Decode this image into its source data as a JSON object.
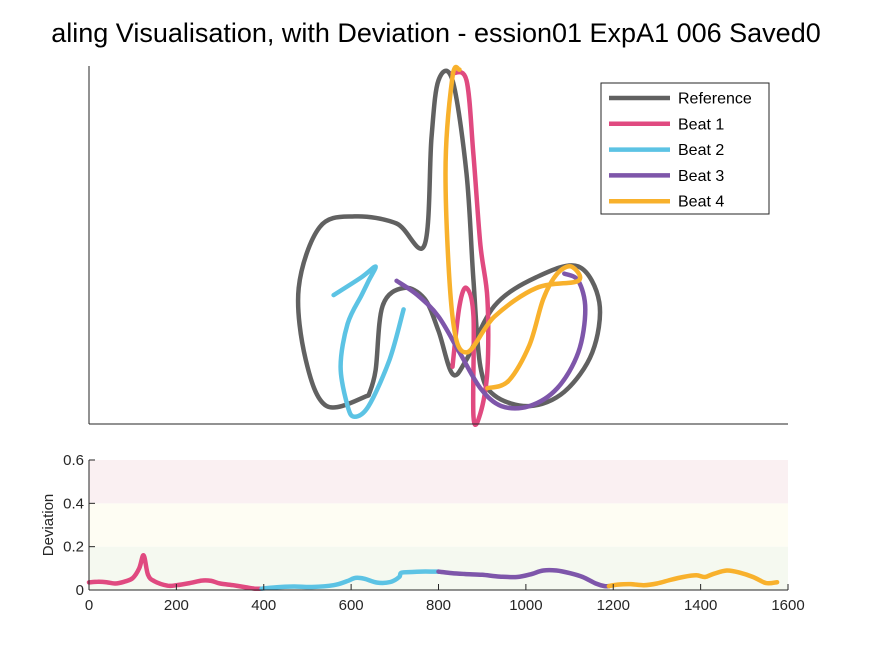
{
  "title": "aling Visualisation, with Deviation - ession01 ExpA1 006 Saved0",
  "colors": {
    "Reference": "#616161",
    "Beat 1": "#E04A80",
    "Beat 2": "#5CC3E4",
    "Beat 3": "#7E56AA",
    "Beat 4": "#F8B12C"
  },
  "chart_data": [
    {
      "type": "line",
      "subtype": "trajectory",
      "legend_position": "top-right",
      "series": [
        {
          "name": "Reference",
          "points": [
            [
              0.4,
              0.08
            ],
            [
              0.34,
              0.05
            ],
            [
              0.31,
              0.18
            ],
            [
              0.3,
              0.38
            ],
            [
              0.33,
              0.55
            ],
            [
              0.38,
              0.58
            ],
            [
              0.44,
              0.56
            ],
            [
              0.48,
              0.5
            ],
            [
              0.49,
              0.8
            ],
            [
              0.5,
              0.96
            ],
            [
              0.52,
              0.96
            ],
            [
              0.54,
              0.7
            ],
            [
              0.55,
              0.4
            ],
            [
              0.56,
              0.16
            ],
            [
              0.58,
              0.08
            ],
            [
              0.63,
              0.05
            ],
            [
              0.68,
              0.09
            ],
            [
              0.72,
              0.2
            ],
            [
              0.73,
              0.34
            ],
            [
              0.7,
              0.44
            ],
            [
              0.64,
              0.41
            ],
            [
              0.58,
              0.33
            ],
            [
              0.54,
              0.18
            ],
            [
              0.52,
              0.14
            ],
            [
              0.5,
              0.26
            ],
            [
              0.48,
              0.35
            ],
            [
              0.45,
              0.38
            ],
            [
              0.42,
              0.33
            ],
            [
              0.41,
              0.15
            ],
            [
              0.4,
              0.08
            ]
          ]
        },
        {
          "name": "Beat 1",
          "points": [
            [
              0.52,
              0.98
            ],
            [
              0.54,
              0.96
            ],
            [
              0.55,
              0.75
            ],
            [
              0.56,
              0.5
            ],
            [
              0.57,
              0.35
            ],
            [
              0.57,
              0.15
            ],
            [
              0.56,
              0.03
            ],
            [
              0.55,
              0.02
            ],
            [
              0.55,
              0.3
            ],
            [
              0.54,
              0.38
            ],
            [
              0.53,
              0.33
            ],
            [
              0.52,
              0.16
            ]
          ]
        },
        {
          "name": "Beat 2",
          "points": [
            [
              0.35,
              0.36
            ],
            [
              0.39,
              0.41
            ],
            [
              0.41,
              0.44
            ],
            [
              0.4,
              0.4
            ],
            [
              0.39,
              0.36
            ],
            [
              0.37,
              0.28
            ],
            [
              0.36,
              0.16
            ],
            [
              0.37,
              0.05
            ],
            [
              0.38,
              0.02
            ],
            [
              0.4,
              0.05
            ],
            [
              0.43,
              0.18
            ],
            [
              0.45,
              0.32
            ]
          ]
        },
        {
          "name": "Beat 3",
          "points": [
            [
              0.44,
              0.4
            ],
            [
              0.47,
              0.36
            ],
            [
              0.5,
              0.3
            ],
            [
              0.53,
              0.2
            ],
            [
              0.56,
              0.1
            ],
            [
              0.59,
              0.05
            ],
            [
              0.63,
              0.05
            ],
            [
              0.67,
              0.1
            ],
            [
              0.7,
              0.2
            ],
            [
              0.71,
              0.32
            ],
            [
              0.7,
              0.4
            ],
            [
              0.68,
              0.42
            ]
          ]
        },
        {
          "name": "Beat 4",
          "points": [
            [
              0.57,
              0.1
            ],
            [
              0.6,
              0.12
            ],
            [
              0.63,
              0.22
            ],
            [
              0.65,
              0.35
            ],
            [
              0.67,
              0.42
            ],
            [
              0.69,
              0.44
            ],
            [
              0.7,
              0.4
            ],
            [
              0.64,
              0.38
            ],
            [
              0.58,
              0.3
            ],
            [
              0.54,
              0.2
            ],
            [
              0.52,
              0.3
            ],
            [
              0.51,
              0.7
            ],
            [
              0.52,
              0.97
            ],
            [
              0.53,
              0.99
            ]
          ]
        }
      ]
    },
    {
      "type": "line",
      "xlim": [
        0,
        1600
      ],
      "ylim": [
        0,
        0.6
      ],
      "xticks": [
        0,
        200,
        400,
        600,
        800,
        1000,
        1200,
        1400,
        1600
      ],
      "yticks": [
        0,
        0.2,
        0.4,
        0.6
      ],
      "ylabel": "Deviation",
      "bands": [
        {
          "from": 0.0,
          "to": 0.2,
          "color": "#F5F9F0"
        },
        {
          "from": 0.2,
          "to": 0.4,
          "color": "#FEFDF3"
        },
        {
          "from": 0.4,
          "to": 0.6,
          "color": "#FAF0F2"
        }
      ],
      "series": [
        {
          "name": "Beat 1",
          "x": [
            0,
            20,
            40,
            60,
            80,
            100,
            115,
            125,
            135,
            150,
            180,
            200,
            230,
            260,
            280,
            300,
            330,
            360,
            380,
            395
          ],
          "y": [
            0.035,
            0.038,
            0.036,
            0.03,
            0.038,
            0.055,
            0.1,
            0.16,
            0.07,
            0.04,
            0.02,
            0.022,
            0.032,
            0.044,
            0.042,
            0.03,
            0.022,
            0.012,
            0.006,
            0.006
          ]
        },
        {
          "name": "Beat 2",
          "x": [
            395,
            430,
            470,
            510,
            560,
            590,
            610,
            630,
            660,
            690,
            710,
            715,
            740,
            760,
            790,
            800
          ],
          "y": [
            0.006,
            0.013,
            0.016,
            0.014,
            0.022,
            0.04,
            0.056,
            0.052,
            0.034,
            0.037,
            0.06,
            0.08,
            0.083,
            0.085,
            0.085,
            0.085
          ]
        },
        {
          "name": "Beat 3",
          "x": [
            800,
            830,
            860,
            900,
            940,
            980,
            1010,
            1040,
            1070,
            1100,
            1130,
            1160,
            1180,
            1190
          ],
          "y": [
            0.085,
            0.078,
            0.074,
            0.07,
            0.062,
            0.06,
            0.072,
            0.09,
            0.09,
            0.078,
            0.06,
            0.03,
            0.018,
            0.018
          ]
        },
        {
          "name": "Beat 4",
          "x": [
            1190,
            1210,
            1240,
            1270,
            1300,
            1330,
            1360,
            1390,
            1410,
            1430,
            1460,
            1490,
            1520,
            1550,
            1575
          ],
          "y": [
            0.018,
            0.025,
            0.027,
            0.022,
            0.03,
            0.046,
            0.06,
            0.068,
            0.06,
            0.075,
            0.09,
            0.08,
            0.06,
            0.032,
            0.036
          ]
        }
      ]
    }
  ]
}
